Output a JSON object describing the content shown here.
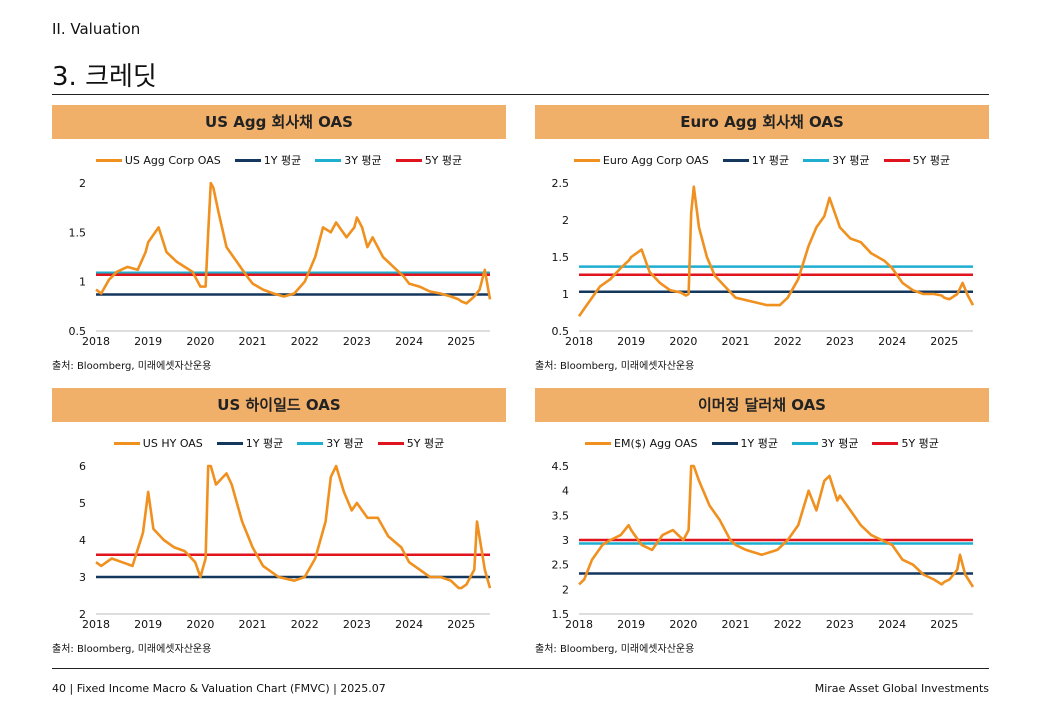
{
  "header": {
    "section": "II. Valuation",
    "title": "3. 크레딧"
  },
  "footer": {
    "left": "40 | Fixed Income Macro & Valuation Chart (FMVC) | 2025.07",
    "right": "Mirae Asset Global Investments"
  },
  "colors": {
    "series": "#f0901e",
    "avg1y": "#14375e",
    "avg3y": "#1eaed0",
    "avg5y": "#e0141e",
    "header_bg": "#f0b06a"
  },
  "chart_data": [
    {
      "type": "line",
      "title": "US Agg 회사채 OAS",
      "source": "출처: Bloomberg, 미래에셋자산운용",
      "ylim": [
        0.5,
        2
      ],
      "yticks": [
        0.5,
        1,
        1.5,
        2
      ],
      "xlim": [
        2018,
        2025.55
      ],
      "xticks": [
        "2018",
        "2019",
        "2020",
        "2021",
        "2022",
        "2023",
        "2024",
        "2025"
      ],
      "series": [
        {
          "name": "US Agg Corp OAS",
          "kind": "series",
          "x": [
            2018.0,
            2018.1,
            2018.25,
            2018.4,
            2018.6,
            2018.8,
            2018.95,
            2019.0,
            2019.2,
            2019.35,
            2019.55,
            2019.7,
            2019.85,
            2020.0,
            2020.1,
            2020.15,
            2020.2,
            2020.25,
            2020.35,
            2020.5,
            2020.7,
            2020.9,
            2021.0,
            2021.2,
            2021.4,
            2021.6,
            2021.8,
            2022.0,
            2022.2,
            2022.35,
            2022.5,
            2022.6,
            2022.8,
            2022.95,
            2023.0,
            2023.1,
            2023.2,
            2023.3,
            2023.5,
            2023.7,
            2023.9,
            2024.0,
            2024.2,
            2024.4,
            2024.6,
            2024.8,
            2024.95,
            2025.0,
            2025.1,
            2025.25,
            2025.35,
            2025.45,
            2025.55
          ],
          "y": [
            0.92,
            0.88,
            1.02,
            1.1,
            1.15,
            1.12,
            1.3,
            1.4,
            1.55,
            1.3,
            1.2,
            1.15,
            1.1,
            0.95,
            0.95,
            1.5,
            2.05,
            1.95,
            1.7,
            1.35,
            1.2,
            1.05,
            0.98,
            0.92,
            0.88,
            0.85,
            0.88,
            1.0,
            1.25,
            1.55,
            1.5,
            1.6,
            1.45,
            1.55,
            1.65,
            1.55,
            1.35,
            1.45,
            1.25,
            1.15,
            1.05,
            0.98,
            0.95,
            0.9,
            0.88,
            0.85,
            0.82,
            0.8,
            0.78,
            0.85,
            0.92,
            1.12,
            0.82
          ]
        },
        {
          "name": "1Y 평균",
          "kind": "avg1y",
          "value": 0.87
        },
        {
          "name": "3Y 평균",
          "kind": "avg3y",
          "value": 1.09
        },
        {
          "name": "5Y 평균",
          "kind": "avg5y",
          "value": 1.07
        }
      ]
    },
    {
      "type": "line",
      "title": "Euro Agg 회사채 OAS",
      "source": "출처: Bloomberg, 미래에셋자산운용",
      "ylim": [
        0.5,
        2.5
      ],
      "yticks": [
        0.5,
        1,
        1.5,
        2,
        2.5
      ],
      "xlim": [
        2018,
        2025.55
      ],
      "xticks": [
        "2018",
        "2019",
        "2020",
        "2021",
        "2022",
        "2023",
        "2024",
        "2025"
      ],
      "series": [
        {
          "name": "Euro Agg Corp OAS",
          "kind": "series",
          "x": [
            2018.0,
            2018.1,
            2018.25,
            2018.4,
            2018.6,
            2018.8,
            2018.95,
            2019.0,
            2019.2,
            2019.35,
            2019.55,
            2019.75,
            2019.95,
            2020.05,
            2020.1,
            2020.15,
            2020.2,
            2020.3,
            2020.45,
            2020.6,
            2020.8,
            2021.0,
            2021.3,
            2021.6,
            2021.85,
            2022.0,
            2022.2,
            2022.4,
            2022.55,
            2022.7,
            2022.8,
            2022.95,
            2023.0,
            2023.2,
            2023.4,
            2023.6,
            2023.85,
            2024.0,
            2024.2,
            2024.4,
            2024.6,
            2024.8,
            2024.95,
            2025.0,
            2025.1,
            2025.25,
            2025.35,
            2025.45,
            2025.55
          ],
          "y": [
            0.7,
            0.8,
            0.95,
            1.1,
            1.2,
            1.35,
            1.45,
            1.5,
            1.6,
            1.3,
            1.15,
            1.05,
            1.02,
            0.98,
            1.0,
            2.1,
            2.45,
            1.9,
            1.5,
            1.25,
            1.1,
            0.95,
            0.9,
            0.85,
            0.85,
            0.95,
            1.2,
            1.65,
            1.9,
            2.05,
            2.3,
            2.0,
            1.9,
            1.75,
            1.7,
            1.55,
            1.45,
            1.35,
            1.15,
            1.05,
            1.0,
            1.0,
            0.98,
            0.95,
            0.93,
            1.0,
            1.15,
            0.98,
            0.85
          ]
        },
        {
          "name": "1Y 평균",
          "kind": "avg1y",
          "value": 1.03
        },
        {
          "name": "3Y 평균",
          "kind": "avg3y",
          "value": 1.37
        },
        {
          "name": "5Y 평균",
          "kind": "avg5y",
          "value": 1.26
        }
      ]
    },
    {
      "type": "line",
      "title": "US 하이일드 OAS",
      "source": "출처: Bloomberg, 미래에셋자산운용",
      "ylim": [
        2,
        6
      ],
      "yticks": [
        2,
        3,
        4,
        5,
        6
      ],
      "xlim": [
        2018,
        2025.55
      ],
      "xticks": [
        "2018",
        "2019",
        "2020",
        "2021",
        "2022",
        "2023",
        "2024",
        "2025"
      ],
      "series": [
        {
          "name": "US HY OAS",
          "kind": "series",
          "x": [
            2018.0,
            2018.1,
            2018.3,
            2018.5,
            2018.7,
            2018.9,
            2019.0,
            2019.1,
            2019.3,
            2019.5,
            2019.7,
            2019.9,
            2020.0,
            2020.1,
            2020.15,
            2020.2,
            2020.3,
            2020.5,
            2020.6,
            2020.8,
            2021.0,
            2021.2,
            2021.5,
            2021.8,
            2022.0,
            2022.2,
            2022.4,
            2022.5,
            2022.6,
            2022.75,
            2022.9,
            2023.0,
            2023.2,
            2023.4,
            2023.6,
            2023.85,
            2024.0,
            2024.2,
            2024.4,
            2024.6,
            2024.8,
            2024.95,
            2025.0,
            2025.1,
            2025.25,
            2025.3,
            2025.45,
            2025.55
          ],
          "y": [
            3.4,
            3.3,
            3.5,
            3.4,
            3.3,
            4.2,
            5.3,
            4.3,
            4.0,
            3.8,
            3.7,
            3.4,
            3.0,
            3.5,
            6.0,
            6.0,
            5.5,
            5.8,
            5.5,
            4.5,
            3.8,
            3.3,
            3.0,
            2.9,
            3.0,
            3.5,
            4.5,
            5.7,
            6.0,
            5.3,
            4.8,
            5.0,
            4.6,
            4.6,
            4.1,
            3.8,
            3.4,
            3.2,
            3.0,
            3.0,
            2.9,
            2.7,
            2.7,
            2.8,
            3.2,
            4.5,
            3.2,
            2.7
          ]
        },
        {
          "name": "1Y 평균",
          "kind": "avg1y",
          "value": 3.0
        },
        {
          "name": "3Y 평균",
          "kind": "avg3y",
          "value": 3.6
        },
        {
          "name": "5Y 평균",
          "kind": "avg5y",
          "value": 3.6
        }
      ]
    },
    {
      "type": "line",
      "title": "이머징 달러채 OAS",
      "source": "출처: Bloomberg, 미래에셋자산운용",
      "ylim": [
        1.5,
        4.5
      ],
      "yticks": [
        1.5,
        2,
        2.5,
        3,
        3.5,
        4,
        4.5
      ],
      "xlim": [
        2018,
        2025.55
      ],
      "xticks": [
        "2018",
        "2019",
        "2020",
        "2021",
        "2022",
        "2023",
        "2024",
        "2025"
      ],
      "series": [
        {
          "name": "EM($) Agg OAS",
          "kind": "series",
          "x": [
            2018.0,
            2018.1,
            2018.25,
            2018.45,
            2018.6,
            2018.8,
            2018.95,
            2019.0,
            2019.2,
            2019.4,
            2019.6,
            2019.8,
            2020.0,
            2020.1,
            2020.15,
            2020.2,
            2020.3,
            2020.5,
            2020.7,
            2020.9,
            2021.0,
            2021.2,
            2021.5,
            2021.8,
            2022.0,
            2022.2,
            2022.4,
            2022.55,
            2022.7,
            2022.8,
            2022.95,
            2023.0,
            2023.2,
            2023.4,
            2023.6,
            2023.8,
            2024.0,
            2024.2,
            2024.4,
            2024.6,
            2024.8,
            2024.95,
            2025.0,
            2025.1,
            2025.25,
            2025.3,
            2025.4,
            2025.55
          ],
          "y": [
            2.1,
            2.2,
            2.6,
            2.9,
            3.0,
            3.1,
            3.3,
            3.2,
            2.9,
            2.8,
            3.1,
            3.2,
            3.0,
            3.2,
            4.5,
            4.5,
            4.2,
            3.7,
            3.4,
            3.0,
            2.9,
            2.8,
            2.7,
            2.8,
            3.0,
            3.3,
            4.0,
            3.6,
            4.2,
            4.3,
            3.8,
            3.9,
            3.6,
            3.3,
            3.1,
            3.0,
            2.9,
            2.6,
            2.5,
            2.3,
            2.2,
            2.1,
            2.15,
            2.2,
            2.4,
            2.7,
            2.3,
            2.05
          ]
        },
        {
          "name": "1Y 평균",
          "kind": "avg1y",
          "value": 2.32
        },
        {
          "name": "3Y 평균",
          "kind": "avg3y",
          "value": 2.93
        },
        {
          "name": "5Y 평균",
          "kind": "avg5y",
          "value": 3.0
        }
      ]
    }
  ]
}
